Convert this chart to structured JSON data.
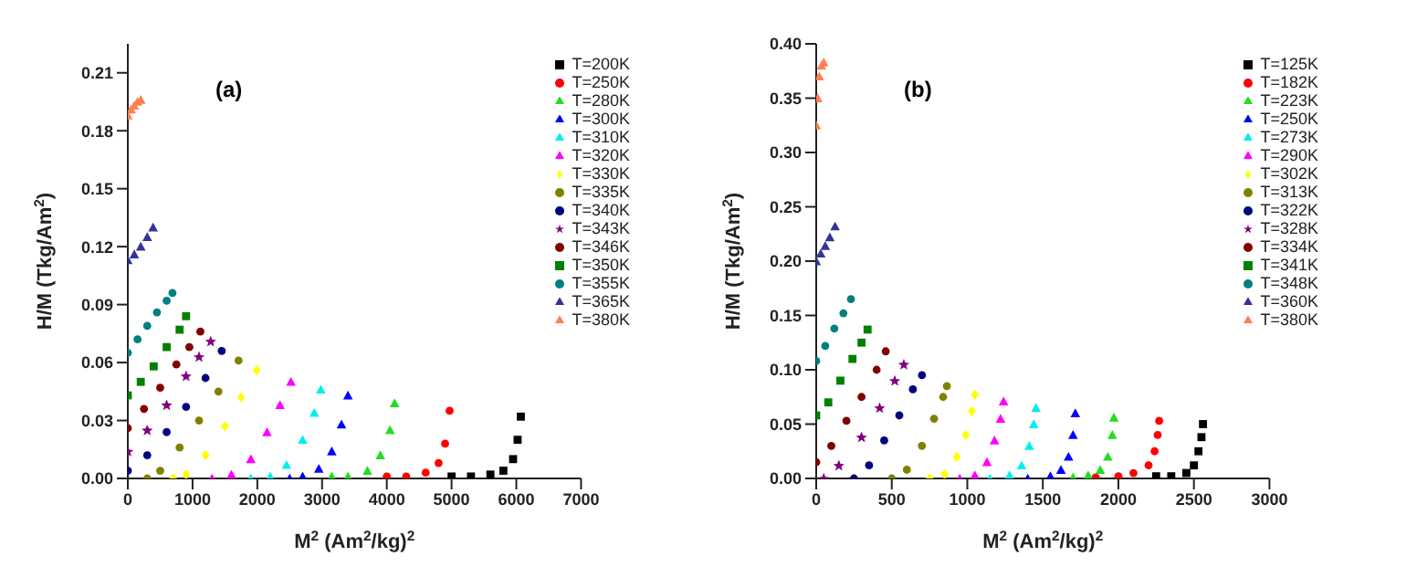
{
  "chart_data": [
    {
      "type": "scatter",
      "xlabel": "M$^{2}$ (Am$^{2}$/kg)$^{2}$",
      "ylabel": "H/M (Tkg/Am$^{2}$)",
      "annotations": [
        "(a)"
      ],
      "legend": "top right",
      "xlim": [
        0,
        7000
      ],
      "xticks": [
        0,
        1000,
        2000,
        3000,
        4000,
        5000,
        6000,
        7000
      ],
      "ylim": [
        0,
        0.225
      ],
      "yticks": [
        {
          "value": 0,
          "label": "0.00"
        },
        {
          "value": 0.03,
          "label": "0.03"
        },
        {
          "value": 0.06,
          "label": "0.06"
        },
        {
          "value": 0.09,
          "label": "0.09"
        },
        {
          "value": 0.12,
          "label": "0.12"
        },
        {
          "value": 0.15,
          "label": "0.15"
        },
        {
          "value": 0.18,
          "label": "0.18"
        },
        {
          "value": 0.21,
          "label": "0.21"
        }
      ],
      "series": [
        {
          "name": "T=200K",
          "color": "#000000",
          "marker": "square",
          "x": [
            5000,
            5300,
            5600,
            5800,
            5950,
            6020,
            6070
          ],
          "values": [
            0.001,
            0.001,
            0.002,
            0.004,
            0.01,
            0.02,
            0.032
          ]
        },
        {
          "name": "T=250K",
          "color": "#ff0000",
          "marker": "circle",
          "x": [
            4000,
            4300,
            4600,
            4800,
            4900,
            4970
          ],
          "values": [
            0.001,
            0.001,
            0.003,
            0.008,
            0.018,
            0.035
          ]
        },
        {
          "name": "T=280K",
          "color": "#22dd22",
          "marker": "triangle",
          "x": [
            3150,
            3400,
            3700,
            3900,
            4050,
            4120
          ],
          "values": [
            0.001,
            0.001,
            0.004,
            0.012,
            0.025,
            0.039
          ]
        },
        {
          "name": "T=300K",
          "color": "#0000ff",
          "marker": "triangle",
          "x": [
            2500,
            2700,
            2950,
            3150,
            3300,
            3400
          ],
          "values": [
            0,
            0.001,
            0.005,
            0.014,
            0.028,
            0.043
          ]
        },
        {
          "name": "T=310K",
          "color": "#00eeee",
          "marker": "triangle",
          "x": [
            1900,
            2200,
            2450,
            2700,
            2880,
            2980
          ],
          "values": [
            0,
            0.001,
            0.007,
            0.02,
            0.034,
            0.046
          ]
        },
        {
          "name": "T=320K",
          "color": "#ff00ff",
          "marker": "triangle",
          "x": [
            1300,
            1600,
            1900,
            2150,
            2350,
            2520
          ],
          "values": [
            0,
            0.002,
            0.01,
            0.024,
            0.038,
            0.05
          ]
        },
        {
          "name": "T=330K",
          "color": "#ffff00",
          "marker": "diamond",
          "x": [
            700,
            900,
            1200,
            1500,
            1750,
            1990
          ],
          "values": [
            0,
            0.002,
            0.012,
            0.027,
            0.042,
            0.056
          ]
        },
        {
          "name": "T=335K",
          "color": "#808000",
          "marker": "circle",
          "x": [
            300,
            500,
            800,
            1100,
            1400,
            1710
          ],
          "values": [
            0,
            0.004,
            0.016,
            0.03,
            0.045,
            0.061
          ]
        },
        {
          "name": "T=340K",
          "color": "#000080",
          "marker": "circle",
          "x": [
            0,
            300,
            600,
            900,
            1200,
            1450
          ],
          "values": [
            0.004,
            0.012,
            0.024,
            0.037,
            0.052,
            0.066
          ]
        },
        {
          "name": "T=343K",
          "color": "#800080",
          "marker": "star",
          "x": [
            0,
            300,
            600,
            900,
            1100,
            1280
          ],
          "values": [
            0.014,
            0.025,
            0.038,
            0.053,
            0.063,
            0.071
          ]
        },
        {
          "name": "T=346K",
          "color": "#800000",
          "marker": "circle",
          "x": [
            0,
            250,
            500,
            750,
            950,
            1120
          ],
          "values": [
            0.026,
            0.036,
            0.047,
            0.059,
            0.068,
            0.076
          ]
        },
        {
          "name": "T=350K",
          "color": "#008000",
          "marker": "square",
          "x": [
            0,
            200,
            400,
            600,
            800,
            900
          ],
          "values": [
            0.043,
            0.05,
            0.058,
            0.068,
            0.077,
            0.084
          ]
        },
        {
          "name": "T=355K",
          "color": "#008080",
          "marker": "circle",
          "x": [
            0,
            150,
            300,
            450,
            600,
            690
          ],
          "values": [
            0.065,
            0.072,
            0.079,
            0.086,
            0.092,
            0.096
          ]
        },
        {
          "name": "T=365K",
          "color": "#333399",
          "marker": "triangle",
          "x": [
            0,
            100,
            200,
            300,
            390
          ],
          "values": [
            0.113,
            0.116,
            0.12,
            0.125,
            0.13
          ]
        },
        {
          "name": "T=380K",
          "color": "#ff7f50",
          "marker": "triangle",
          "x": [
            0,
            50,
            100,
            150,
            200
          ],
          "values": [
            0.188,
            0.191,
            0.193,
            0.195,
            0.196
          ]
        }
      ]
    },
    {
      "type": "scatter",
      "xlabel": "M$^{2}$ (Am$^{2}$/kg)$^{2}$",
      "ylabel": "H/M (Tkg/Am$^{2}$)",
      "annotations": [
        "(b)"
      ],
      "legend": "top right",
      "xlim": [
        0,
        3000
      ],
      "xticks": [
        0,
        500,
        1000,
        1500,
        2000,
        2500,
        3000
      ],
      "ylim": [
        0,
        0.4
      ],
      "yticks": [
        {
          "value": 0,
          "label": "0.00"
        },
        {
          "value": 0.05,
          "label": "0.05"
        },
        {
          "value": 0.1,
          "label": "0.10"
        },
        {
          "value": 0.15,
          "label": "0.15"
        },
        {
          "value": 0.2,
          "label": "0.20"
        },
        {
          "value": 0.25,
          "label": "0.25"
        },
        {
          "value": 0.3,
          "label": "0.30"
        },
        {
          "value": 0.35,
          "label": "0.35"
        },
        {
          "value": 0.4,
          "label": "0.40"
        }
      ],
      "series": [
        {
          "name": "T=125K",
          "color": "#000000",
          "marker": "square",
          "x": [
            2250,
            2350,
            2450,
            2500,
            2530,
            2550,
            2560
          ],
          "values": [
            0.002,
            0.002,
            0.005,
            0.012,
            0.025,
            0.038,
            0.05
          ]
        },
        {
          "name": "T=182K",
          "color": "#ff0000",
          "marker": "circle",
          "x": [
            1850,
            2000,
            2100,
            2200,
            2240,
            2260,
            2270
          ],
          "values": [
            0.001,
            0.002,
            0.005,
            0.012,
            0.025,
            0.04,
            0.053
          ]
        },
        {
          "name": "T=223K",
          "color": "#22dd22",
          "marker": "triangle",
          "x": [
            1700,
            1800,
            1880,
            1930,
            1960,
            1970
          ],
          "values": [
            0.001,
            0.003,
            0.008,
            0.02,
            0.04,
            0.056
          ]
        },
        {
          "name": "T=250K",
          "color": "#0000ff",
          "marker": "triangle",
          "x": [
            1400,
            1550,
            1620,
            1670,
            1700,
            1715
          ],
          "values": [
            0,
            0.002,
            0.008,
            0.02,
            0.04,
            0.06
          ]
        },
        {
          "name": "T=273K",
          "color": "#00eeee",
          "marker": "triangle",
          "x": [
            1150,
            1280,
            1360,
            1410,
            1440,
            1455
          ],
          "values": [
            0,
            0.003,
            0.012,
            0.03,
            0.05,
            0.065
          ]
        },
        {
          "name": "T=290K",
          "color": "#ff00ff",
          "marker": "triangle",
          "x": [
            950,
            1050,
            1130,
            1180,
            1220,
            1240
          ],
          "values": [
            0,
            0.003,
            0.015,
            0.035,
            0.055,
            0.071
          ]
        },
        {
          "name": "T=302K",
          "color": "#ffff00",
          "marker": "diamond",
          "x": [
            750,
            850,
            930,
            990,
            1030,
            1050
          ],
          "values": [
            0,
            0.004,
            0.02,
            0.04,
            0.062,
            0.077
          ]
        },
        {
          "name": "T=313K",
          "color": "#808000",
          "marker": "circle",
          "x": [
            500,
            600,
            700,
            780,
            840,
            865
          ],
          "values": [
            0,
            0.008,
            0.03,
            0.055,
            0.075,
            0.085
          ]
        },
        {
          "name": "T=322K",
          "color": "#000080",
          "marker": "circle",
          "x": [
            250,
            350,
            450,
            550,
            640,
            700
          ],
          "values": [
            0,
            0.012,
            0.035,
            0.058,
            0.082,
            0.095
          ]
        },
        {
          "name": "T=328K",
          "color": "#800080",
          "marker": "star",
          "x": [
            50,
            150,
            300,
            420,
            520,
            580
          ],
          "values": [
            0,
            0.012,
            0.038,
            0.065,
            0.09,
            0.105
          ]
        },
        {
          "name": "T=334K",
          "color": "#800000",
          "marker": "circle",
          "x": [
            0,
            100,
            200,
            300,
            400,
            460
          ],
          "values": [
            0.015,
            0.03,
            0.053,
            0.075,
            0.1,
            0.117
          ]
        },
        {
          "name": "T=341K",
          "color": "#008000",
          "marker": "square",
          "x": [
            0,
            80,
            160,
            240,
            300,
            340
          ],
          "values": [
            0.058,
            0.07,
            0.09,
            0.11,
            0.125,
            0.137
          ]
        },
        {
          "name": "T=348K",
          "color": "#008080",
          "marker": "circle",
          "x": [
            0,
            60,
            120,
            180,
            230
          ],
          "values": [
            0.108,
            0.122,
            0.138,
            0.152,
            0.165
          ]
        },
        {
          "name": "T=360K",
          "color": "#333399",
          "marker": "triangle",
          "x": [
            0,
            30,
            60,
            90,
            125
          ],
          "values": [
            0.2,
            0.207,
            0.214,
            0.222,
            0.232
          ]
        },
        {
          "name": "T=380K",
          "color": "#ff7f50",
          "marker": "triangle",
          "x": [
            0,
            10,
            20,
            35,
            50
          ],
          "values": [
            0.325,
            0.35,
            0.37,
            0.38,
            0.383
          ]
        }
      ]
    }
  ]
}
